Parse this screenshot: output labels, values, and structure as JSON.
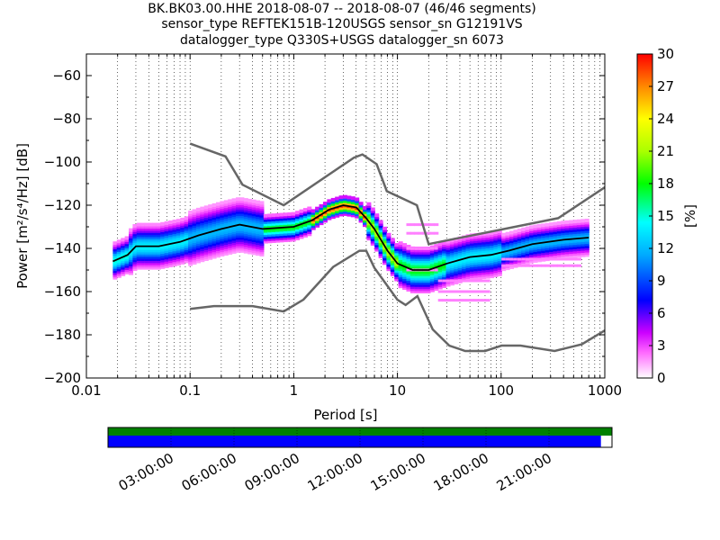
{
  "header": {
    "line1": "BK.BK03.00.HHE   2018-08-07 -- 2018-08-07  (46/46 segments)",
    "line2": "sensor_type REFTEK151B-120USGS sensor_sn G12191VS",
    "line3": "datalogger_type Q330S+USGS datalogger_sn 6073"
  },
  "chart_data": [
    {
      "type": "heatmap",
      "xlabel": "Period [s]",
      "ylabel": "Power [m²/s⁴/Hz] [dB]",
      "xscale": "log",
      "xlim": [
        0.01,
        1000
      ],
      "ylim": [
        -200,
        -50
      ],
      "x_ticks": [
        "0.01",
        "0.1",
        "1",
        "10",
        "100",
        "1000"
      ],
      "y_ticks": [
        "−60",
        "−80",
        "−100",
        "−120",
        "−140",
        "−160",
        "−180",
        "−200"
      ],
      "grid": "dotted vertical at log minor periods",
      "colorbar": {
        "label": "[%]",
        "min": 0,
        "max": 30,
        "ticks": [
          "0",
          "3",
          "6",
          "9",
          "12",
          "15",
          "18",
          "21",
          "24",
          "27",
          "30"
        ],
        "colormap": [
          "#ffffff",
          "#cc00ff",
          "#0000ff",
          "#00ffff",
          "#00ff00",
          "#ffff00",
          "#ff0000"
        ]
      },
      "series": [
        {
          "role": "high-noise-model",
          "color": "#666666",
          "x": [
            0.1,
            0.22,
            0.32,
            0.8,
            3.8,
            4.6,
            6.3,
            7.9,
            15.4,
            20,
            354.8,
            10000
          ],
          "y": [
            -91.5,
            -97.4,
            -110.5,
            -120,
            -98,
            -96.5,
            -101,
            -113.5,
            -120,
            -138,
            -126,
            -80
          ]
        },
        {
          "role": "low-noise-model",
          "color": "#666666",
          "x": [
            0.1,
            0.17,
            0.4,
            0.8,
            1.24,
            2.4,
            4.3,
            5,
            6,
            10,
            12,
            15.6,
            21.9,
            31.6,
            45,
            70,
            101,
            154,
            328,
            600,
            1000
          ],
          "y": [
            -168,
            -166.7,
            -166.7,
            -169.2,
            -163.7,
            -148.6,
            -141.1,
            -141.1,
            -149,
            -163.8,
            -166.2,
            -162.1,
            -177.5,
            -185,
            -187.5,
            -187.5,
            -185,
            -185,
            -187.5,
            -184.4,
            -178
          ]
        },
        {
          "role": "mode",
          "color": "#000000",
          "x": [
            0.018,
            0.025,
            0.03,
            0.05,
            0.08,
            0.12,
            0.2,
            0.3,
            0.5,
            1,
            1.5,
            2.2,
            3,
            4,
            5,
            6,
            8,
            10,
            14,
            20,
            30,
            50,
            80,
            120,
            200,
            400,
            700
          ],
          "y": [
            -146,
            -143,
            -139,
            -139,
            -137,
            -134,
            -131,
            -129,
            -131,
            -130,
            -127,
            -122,
            -120,
            -121,
            -126,
            -131,
            -141,
            -147,
            -150,
            -150,
            -147,
            -144,
            -143,
            -141,
            -138,
            -136,
            -135
          ]
        }
      ],
      "heat_bands": [
        {
          "x_from": 0.018,
          "x_to": 0.025,
          "y_center": -144,
          "spread": 4,
          "peak_pct": 15
        },
        {
          "x_from": 0.025,
          "x_to": 0.1,
          "y_center": -138,
          "spread": 5,
          "peak_pct": 14
        },
        {
          "x_from": 0.1,
          "x_to": 0.5,
          "y_center": -131,
          "spread": 6,
          "peak_pct": 12
        },
        {
          "x_from": 0.5,
          "x_to": 1.5,
          "y_center": -129,
          "spread": 3,
          "peak_pct": 18
        },
        {
          "x_from": 1.5,
          "x_to": 5,
          "y_center": -121,
          "spread": 2,
          "peak_pct": 29
        },
        {
          "x_from": 5,
          "x_to": 10,
          "y_center": -136,
          "spread": 4,
          "peak_pct": 22
        },
        {
          "x_from": 10,
          "x_to": 30,
          "y_center": -149,
          "spread": 5,
          "peak_pct": 18
        },
        {
          "x_from": 30,
          "x_to": 100,
          "y_center": -144,
          "spread": 5,
          "peak_pct": 14
        },
        {
          "x_from": 100,
          "x_to": 600,
          "y_center": -136,
          "spread": 4,
          "peak_pct": 12
        }
      ],
      "sparse_bands": [
        {
          "x_from": 12,
          "x_to": 25,
          "y_values": [
            -129,
            -133,
            -140,
            -150
          ],
          "peak_pct": 2
        },
        {
          "x_from": 25,
          "x_to": 80,
          "y_values": [
            -160,
            -164,
            -155
          ],
          "peak_pct": 2
        },
        {
          "x_from": 100,
          "x_to": 600,
          "y_values": [
            -145,
            -148
          ],
          "peak_pct": 2
        }
      ]
    },
    {
      "type": "timeline",
      "ticks": [
        "03:00:00",
        "06:00:00",
        "09:00:00",
        "12:00:00",
        "15:00:00",
        "18:00:00",
        "21:00:00"
      ],
      "rows": [
        {
          "name": "data",
          "color": "#008000",
          "from": 0,
          "to": 1
        },
        {
          "name": "coverage",
          "color": "#0000ff",
          "from": 0,
          "to": 0.978
        }
      ]
    }
  ]
}
